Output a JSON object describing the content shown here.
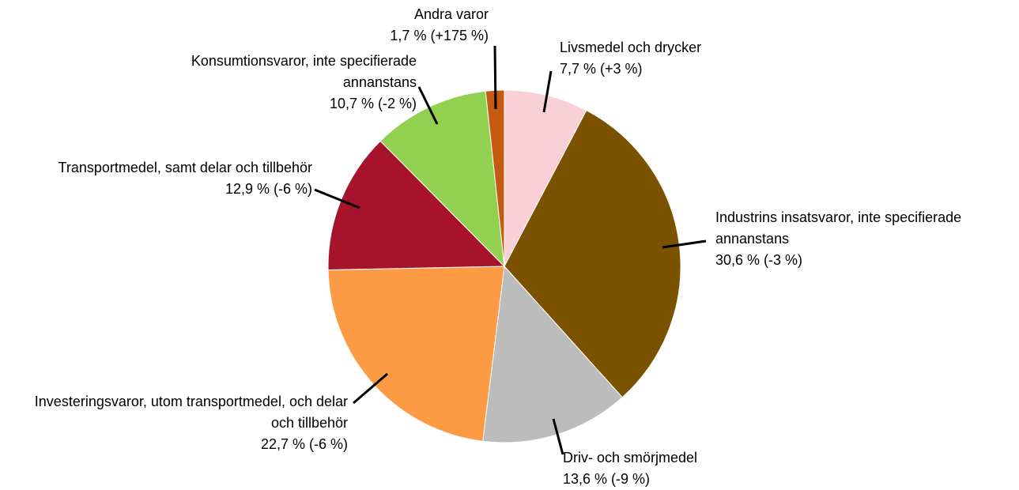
{
  "chart_data": {
    "type": "pie",
    "categories": [
      "Livsmedel och drycker",
      "Industrins insatsvaror, inte specifierade annanstans",
      "Driv- och smörjmedel",
      "Investeringsvaror, utom transportmedel, och delar och tillbehör",
      "Transportmedel, samt delar och tillbehör",
      "Konsumtionsvaror, inte specifierade annanstans",
      "Andra varor"
    ],
    "values": [
      7.7,
      30.6,
      13.6,
      22.7,
      12.9,
      10.7,
      1.7
    ],
    "value_labels": [
      "7,7 % (+3 %)",
      "30,6 % (-3 %)",
      "13,6 % (-9 %)",
      "22,7 % (-6 %)",
      "12,9 % (-6 %)",
      "10,7 % (-2 %)",
      "1,7 % (+175 %)"
    ],
    "colors": [
      "#f9d0d6",
      "#7a5200",
      "#bcbcbc",
      "#fd9b45",
      "#a8132c",
      "#92d050",
      "#c55a11"
    ]
  }
}
